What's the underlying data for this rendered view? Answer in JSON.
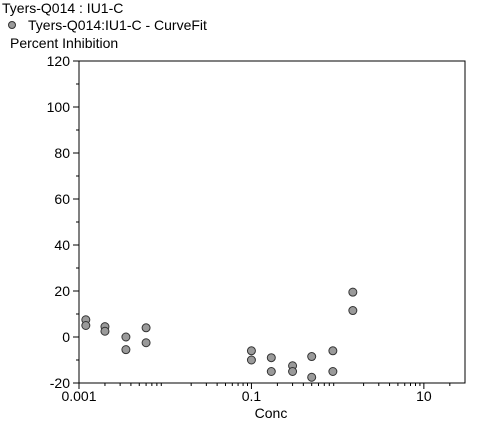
{
  "chart_data": {
    "type": "scatter",
    "title": "Tyers-Q014  : IU1-C",
    "legend": {
      "position": "top-left",
      "entries": [
        {
          "name": "Tyers-Q014:IU1-C - CurveFit",
          "color": "#9a9a9a"
        }
      ]
    },
    "ylabel": "Percent  Inhibition",
    "xlabel": "Conc",
    "xscale": "log",
    "xlim": [
      0.001,
      30
    ],
    "ylim": [
      -20,
      120
    ],
    "xticks": [
      {
        "value": 0.001,
        "label": "0.001"
      },
      {
        "value": 0.1,
        "label": "0.1"
      },
      {
        "value": 10,
        "label": "10"
      }
    ],
    "yticks": [
      {
        "value": 120,
        "label": "120"
      },
      {
        "value": 100,
        "label": "100"
      },
      {
        "value": 80,
        "label": "80"
      },
      {
        "value": 60,
        "label": "60"
      },
      {
        "value": 40,
        "label": "40"
      },
      {
        "value": 20,
        "label": "20"
      },
      {
        "value": 0,
        "label": "0"
      },
      {
        "value": -20,
        "label": "-20"
      }
    ],
    "grid": false,
    "series": [
      {
        "name": "Tyers-Q014:IU1-C - CurveFit",
        "color": "#9a9a9a",
        "points": [
          {
            "x": 0.0012,
            "y": 7.5
          },
          {
            "x": 0.0012,
            "y": 5.0
          },
          {
            "x": 0.002,
            "y": 4.5
          },
          {
            "x": 0.002,
            "y": 2.5
          },
          {
            "x": 0.0035,
            "y": 0.0
          },
          {
            "x": 0.0035,
            "y": -5.5
          },
          {
            "x": 0.006,
            "y": 4.0
          },
          {
            "x": 0.006,
            "y": -2.5
          },
          {
            "x": 0.1,
            "y": -6.0
          },
          {
            "x": 0.1,
            "y": -10.0
          },
          {
            "x": 0.17,
            "y": -9.0
          },
          {
            "x": 0.17,
            "y": -15.0
          },
          {
            "x": 0.3,
            "y": -12.5
          },
          {
            "x": 0.3,
            "y": -15.0
          },
          {
            "x": 0.5,
            "y": -8.5
          },
          {
            "x": 0.5,
            "y": -17.5
          },
          {
            "x": 0.88,
            "y": -6.0
          },
          {
            "x": 0.88,
            "y": -15.0
          },
          {
            "x": 1.5,
            "y": 19.5
          },
          {
            "x": 1.5,
            "y": 11.5
          }
        ]
      }
    ]
  }
}
